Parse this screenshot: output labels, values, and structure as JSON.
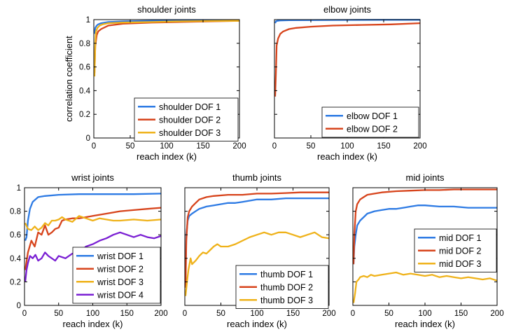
{
  "chart_data": [
    {
      "type": "line",
      "title": "shoulder joints",
      "xlabel": "reach index (k)",
      "ylabel": "correlation coefficient",
      "xlim": [
        0,
        200
      ],
      "ylim": [
        0,
        1
      ],
      "xticks": [
        0,
        50,
        100,
        150,
        200
      ],
      "yticks": [
        0,
        0.2,
        0.4,
        0.6,
        0.8,
        1
      ],
      "ytick_labels": [
        "0",
        "0.2",
        "0.4",
        "0.6",
        "0.8",
        "1"
      ],
      "grid": false,
      "legend_position": "bottom-right",
      "series": [
        {
          "name": "shoulder DOF 1",
          "color": "#2E7BE4",
          "x": [
            1,
            2,
            4,
            6,
            10,
            20,
            40,
            80,
            120,
            160,
            200
          ],
          "y": [
            0.88,
            0.93,
            0.95,
            0.96,
            0.97,
            0.98,
            0.985,
            0.99,
            0.992,
            0.994,
            0.995
          ]
        },
        {
          "name": "shoulder DOF 2",
          "color": "#D7441C",
          "x": [
            1,
            2,
            4,
            6,
            10,
            20,
            40,
            80,
            120,
            160,
            200
          ],
          "y": [
            0.55,
            0.78,
            0.87,
            0.9,
            0.92,
            0.95,
            0.965,
            0.975,
            0.98,
            0.985,
            0.99
          ]
        },
        {
          "name": "shoulder DOF 3",
          "color": "#EFB21A",
          "x": [
            1,
            2,
            3,
            5,
            8,
            12,
            20,
            40,
            80,
            120,
            160,
            200
          ],
          "y": [
            0.52,
            0.8,
            0.9,
            0.93,
            0.95,
            0.96,
            0.97,
            0.975,
            0.98,
            0.985,
            0.988,
            0.99
          ]
        }
      ]
    },
    {
      "type": "line",
      "title": "elbow joints",
      "xlabel": "reach index (k)",
      "ylabel": "",
      "xlim": [
        0,
        200
      ],
      "ylim": [
        0,
        1
      ],
      "xticks": [
        0,
        50,
        100,
        150,
        200
      ],
      "grid": false,
      "legend_position": "bottom-right",
      "series": [
        {
          "name": "elbow DOF 1",
          "color": "#2E7BE4",
          "x": [
            1,
            2,
            4,
            8,
            20,
            50,
            100,
            150,
            200
          ],
          "y": [
            0.97,
            0.985,
            0.99,
            0.993,
            0.995,
            0.996,
            0.997,
            0.998,
            0.998
          ]
        },
        {
          "name": "elbow DOF 2",
          "color": "#D7441C",
          "x": [
            1,
            2,
            3,
            5,
            8,
            12,
            20,
            30,
            50,
            80,
            120,
            160,
            200
          ],
          "y": [
            0.35,
            0.55,
            0.78,
            0.84,
            0.88,
            0.9,
            0.92,
            0.93,
            0.94,
            0.95,
            0.955,
            0.96,
            0.97
          ]
        }
      ]
    },
    {
      "type": "line",
      "title": "wrist joints",
      "xlabel": "reach index (k)",
      "ylabel": "",
      "xlim": [
        0,
        200
      ],
      "ylim": [
        0,
        1
      ],
      "xticks": [
        0,
        50,
        100,
        150,
        200
      ],
      "yticks": [
        0,
        0.2,
        0.4,
        0.6,
        0.8,
        1
      ],
      "ytick_labels": [
        "0",
        "0.2",
        "0.4",
        "0.6",
        "0.8",
        "1"
      ],
      "grid": false,
      "legend_position": "bottom-right",
      "series": [
        {
          "name": "wrist DOF 1",
          "color": "#2E7BE4",
          "x": [
            1,
            3,
            5,
            8,
            12,
            20,
            30,
            50,
            80,
            120,
            160,
            200
          ],
          "y": [
            0.55,
            0.58,
            0.72,
            0.82,
            0.88,
            0.92,
            0.93,
            0.94,
            0.945,
            0.945,
            0.945,
            0.95
          ]
        },
        {
          "name": "wrist DOF 2",
          "color": "#D7441C",
          "x": [
            1,
            5,
            10,
            15,
            20,
            25,
            30,
            35,
            40,
            45,
            50,
            55,
            60,
            70,
            80,
            90,
            100,
            120,
            140,
            160,
            180,
            200
          ],
          "y": [
            0.3,
            0.45,
            0.55,
            0.5,
            0.62,
            0.6,
            0.68,
            0.6,
            0.62,
            0.65,
            0.66,
            0.72,
            0.73,
            0.74,
            0.74,
            0.75,
            0.76,
            0.78,
            0.8,
            0.81,
            0.82,
            0.83
          ]
        },
        {
          "name": "wrist DOF 3",
          "color": "#EFB21A",
          "x": [
            1,
            5,
            10,
            15,
            20,
            25,
            30,
            35,
            40,
            45,
            50,
            55,
            60,
            70,
            80,
            90,
            100,
            110,
            120,
            130,
            140,
            160,
            180,
            200
          ],
          "y": [
            0.7,
            0.65,
            0.64,
            0.67,
            0.64,
            0.66,
            0.7,
            0.68,
            0.72,
            0.72,
            0.73,
            0.75,
            0.73,
            0.71,
            0.76,
            0.74,
            0.72,
            0.74,
            0.73,
            0.72,
            0.72,
            0.73,
            0.72,
            0.73
          ]
        },
        {
          "name": "wrist DOF 4",
          "color": "#7A1FD3",
          "x": [
            1,
            3,
            5,
            8,
            12,
            16,
            20,
            25,
            30,
            35,
            40,
            45,
            50,
            60,
            70,
            80,
            90,
            100,
            110,
            120,
            130,
            140,
            150,
            160,
            170,
            180,
            190,
            200
          ],
          "y": [
            0.2,
            0.3,
            0.36,
            0.42,
            0.4,
            0.43,
            0.38,
            0.4,
            0.45,
            0.42,
            0.4,
            0.38,
            0.42,
            0.4,
            0.44,
            0.45,
            0.5,
            0.52,
            0.55,
            0.57,
            0.6,
            0.62,
            0.6,
            0.58,
            0.6,
            0.58,
            0.57,
            0.59
          ]
        }
      ]
    },
    {
      "type": "line",
      "title": "thumb joints",
      "xlabel": "reach index (k)",
      "ylabel": "",
      "xlim": [
        0,
        200
      ],
      "ylim": [
        0,
        1
      ],
      "xticks": [
        0,
        50,
        100,
        150,
        200
      ],
      "grid": false,
      "legend_position": "bottom-right",
      "series": [
        {
          "name": "thumb DOF 1",
          "color": "#2E7BE4",
          "x": [
            1,
            2,
            4,
            6,
            10,
            15,
            20,
            30,
            40,
            50,
            60,
            70,
            80,
            100,
            120,
            140,
            160,
            180,
            200
          ],
          "y": [
            0.2,
            0.6,
            0.72,
            0.76,
            0.78,
            0.8,
            0.82,
            0.84,
            0.85,
            0.86,
            0.87,
            0.87,
            0.88,
            0.9,
            0.9,
            0.91,
            0.91,
            0.91,
            0.91
          ]
        },
        {
          "name": "thumb DOF 2",
          "color": "#D7441C",
          "x": [
            1,
            2,
            4,
            6,
            10,
            15,
            20,
            30,
            40,
            60,
            80,
            100,
            120,
            140,
            160,
            180,
            200
          ],
          "y": [
            0.15,
            0.55,
            0.75,
            0.8,
            0.84,
            0.87,
            0.9,
            0.92,
            0.93,
            0.94,
            0.94,
            0.95,
            0.95,
            0.955,
            0.96,
            0.96,
            0.96
          ]
        },
        {
          "name": "thumb DOF 3",
          "color": "#EFB21A",
          "x": [
            1,
            3,
            5,
            8,
            10,
            15,
            20,
            25,
            30,
            35,
            40,
            45,
            50,
            60,
            70,
            80,
            90,
            100,
            110,
            120,
            130,
            140,
            150,
            160,
            170,
            180,
            190,
            200
          ],
          "y": [
            0.08,
            0.2,
            0.3,
            0.4,
            0.35,
            0.38,
            0.42,
            0.45,
            0.44,
            0.47,
            0.5,
            0.52,
            0.5,
            0.5,
            0.52,
            0.55,
            0.58,
            0.6,
            0.62,
            0.6,
            0.62,
            0.62,
            0.6,
            0.58,
            0.6,
            0.62,
            0.58,
            0.57
          ]
        }
      ]
    },
    {
      "type": "line",
      "title": "mid joints",
      "xlabel": "reach index (k)",
      "ylabel": "",
      "xlim": [
        0,
        200
      ],
      "ylim": [
        0,
        1
      ],
      "xticks": [
        0,
        50,
        100,
        150,
        200
      ],
      "grid": false,
      "legend_position": "center-right",
      "series": [
        {
          "name": "mid DOF 1",
          "color": "#2E7BE4",
          "x": [
            1,
            2,
            4,
            6,
            10,
            15,
            20,
            30,
            40,
            50,
            60,
            70,
            80,
            90,
            100,
            120,
            140,
            160,
            180,
            200
          ],
          "y": [
            0.35,
            0.5,
            0.6,
            0.68,
            0.72,
            0.75,
            0.78,
            0.8,
            0.81,
            0.82,
            0.82,
            0.83,
            0.84,
            0.85,
            0.85,
            0.84,
            0.84,
            0.83,
            0.83,
            0.83
          ]
        },
        {
          "name": "mid DOF 2",
          "color": "#D7441C",
          "x": [
            1,
            2,
            4,
            6,
            10,
            15,
            20,
            30,
            40,
            60,
            80,
            100,
            120,
            140,
            160,
            180,
            200
          ],
          "y": [
            0.35,
            0.6,
            0.8,
            0.86,
            0.9,
            0.92,
            0.94,
            0.95,
            0.96,
            0.97,
            0.975,
            0.98,
            0.98,
            0.985,
            0.985,
            0.985,
            0.985
          ]
        },
        {
          "name": "mid DOF 3",
          "color": "#EFB21A",
          "x": [
            1,
            3,
            5,
            8,
            10,
            15,
            20,
            25,
            30,
            40,
            50,
            60,
            70,
            80,
            90,
            100,
            110,
            120,
            130,
            140,
            150,
            160,
            170,
            180,
            190,
            200
          ],
          "y": [
            0.02,
            0.1,
            0.2,
            0.22,
            0.24,
            0.25,
            0.24,
            0.26,
            0.25,
            0.26,
            0.27,
            0.28,
            0.26,
            0.27,
            0.26,
            0.25,
            0.26,
            0.24,
            0.25,
            0.24,
            0.23,
            0.24,
            0.23,
            0.22,
            0.23,
            0.21
          ]
        }
      ]
    }
  ]
}
